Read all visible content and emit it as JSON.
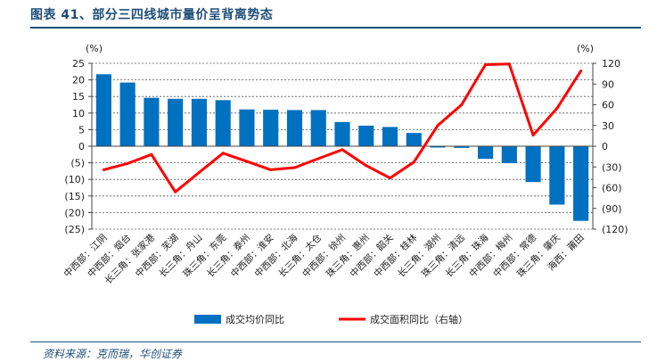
{
  "header": {
    "title": "图表 41、部分三四线城市量价呈背离势态"
  },
  "source": "资料来源：克而瑞，华创证券",
  "chart_data": {
    "type": "bar",
    "categories": [
      "中西部：江阴",
      "中西部：烟台",
      "长三角：张家港",
      "中西部：芜湖",
      "长三角：舟山",
      "珠三角：东莞",
      "长三角：泰州",
      "中西部：淮安",
      "中西部：北海",
      "长三角：太仓",
      "中西部：徐州",
      "珠三角：惠州",
      "中西部：韶关",
      "中西部：桂林",
      "长三角：湖州",
      "珠三角：清远",
      "长三角：珠海",
      "中西部：梅州",
      "中西部：常德",
      "珠三角：肇庆",
      "海西：莆田"
    ],
    "series": [
      {
        "name": "成交均价同比",
        "type": "bar",
        "axis": "left",
        "color": "#0070c0",
        "values": [
          21.7,
          19.2,
          14.6,
          14.3,
          14.3,
          13.9,
          11.1,
          11.0,
          10.9,
          10.9,
          7.3,
          6.2,
          5.8,
          4.0,
          -0.4,
          -0.5,
          -3.8,
          -5.1,
          -10.8,
          -17.6,
          -22.5
        ]
      },
      {
        "name": "成交面积同比（右轴）",
        "type": "line",
        "axis": "right",
        "color": "#ff0000",
        "values": [
          -34,
          -25,
          -12,
          -66,
          -38,
          -10,
          -22,
          -34,
          -31,
          -18,
          -5,
          -28,
          -46,
          -23,
          30,
          60,
          118,
          119,
          16,
          55,
          109
        ]
      }
    ],
    "left_axis": {
      "unit": "(%)",
      "ylim": [
        -25,
        25
      ],
      "ticks": [
        25,
        20,
        15,
        10,
        5,
        0,
        -5,
        -10,
        -15,
        -20,
        -25
      ],
      "tick_labels": [
        "25",
        "20",
        "15",
        "10",
        "5",
        "0",
        "(5)",
        "(10)",
        "(15)",
        "(20)",
        "(25)"
      ]
    },
    "right_axis": {
      "unit": "(%)",
      "ylim": [
        -120,
        120
      ],
      "ticks": [
        120,
        90,
        60,
        30,
        0,
        -30,
        -60,
        -90,
        -120
      ],
      "tick_labels": [
        "120",
        "90",
        "60",
        "30",
        "0",
        "(30)",
        "(60)",
        "(90)",
        "(120)"
      ]
    },
    "grid": "horizontal-dashed",
    "legend_position": "bottom"
  }
}
